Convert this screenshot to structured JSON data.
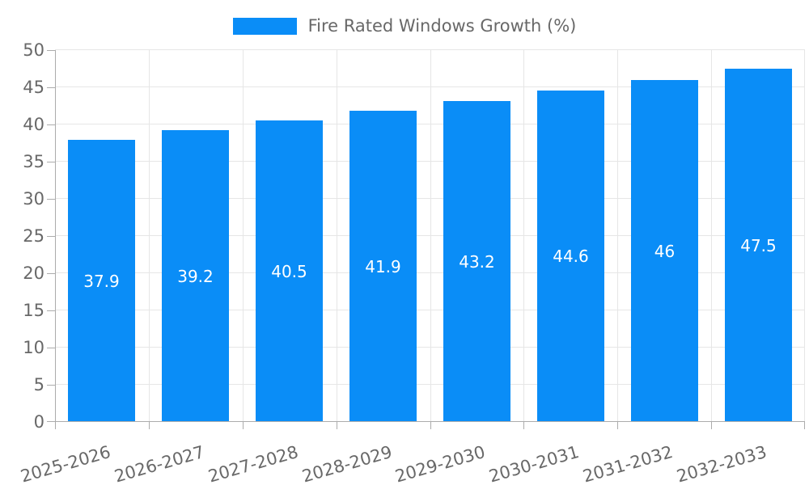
{
  "legend": {
    "items": [
      {
        "label": "Fire Rated Windows Growth (%)",
        "color": "#0a8df7"
      }
    ]
  },
  "chart_data": {
    "type": "bar",
    "title": "",
    "xlabel": "",
    "ylabel": "",
    "categories": [
      "2025-2026",
      "2026-2027",
      "2027-2028",
      "2028-2029",
      "2029-2030",
      "2030-2031",
      "2031-2032",
      "2032-2033"
    ],
    "series": [
      {
        "name": "Fire Rated Windows Growth (%)",
        "values": [
          37.9,
          39.2,
          40.5,
          41.9,
          43.2,
          44.6,
          46,
          47.5
        ],
        "value_labels": [
          "37.9",
          "39.2",
          "40.5",
          "41.9",
          "43.2",
          "44.6",
          "46",
          "47.5"
        ]
      }
    ],
    "ylim": [
      0,
      50
    ],
    "yticks": [
      0,
      5,
      10,
      15,
      20,
      25,
      30,
      35,
      40,
      45,
      50
    ],
    "grid": true,
    "legend_position": "top",
    "x_label_rotation_deg": -16,
    "colors": {
      "bar": "#0a8df7",
      "grid_line": "#e6e6e6",
      "axis_line": "#acacac",
      "tick_text": "#686868",
      "value_label_text": "#ffffff",
      "background": "#ffffff"
    }
  }
}
